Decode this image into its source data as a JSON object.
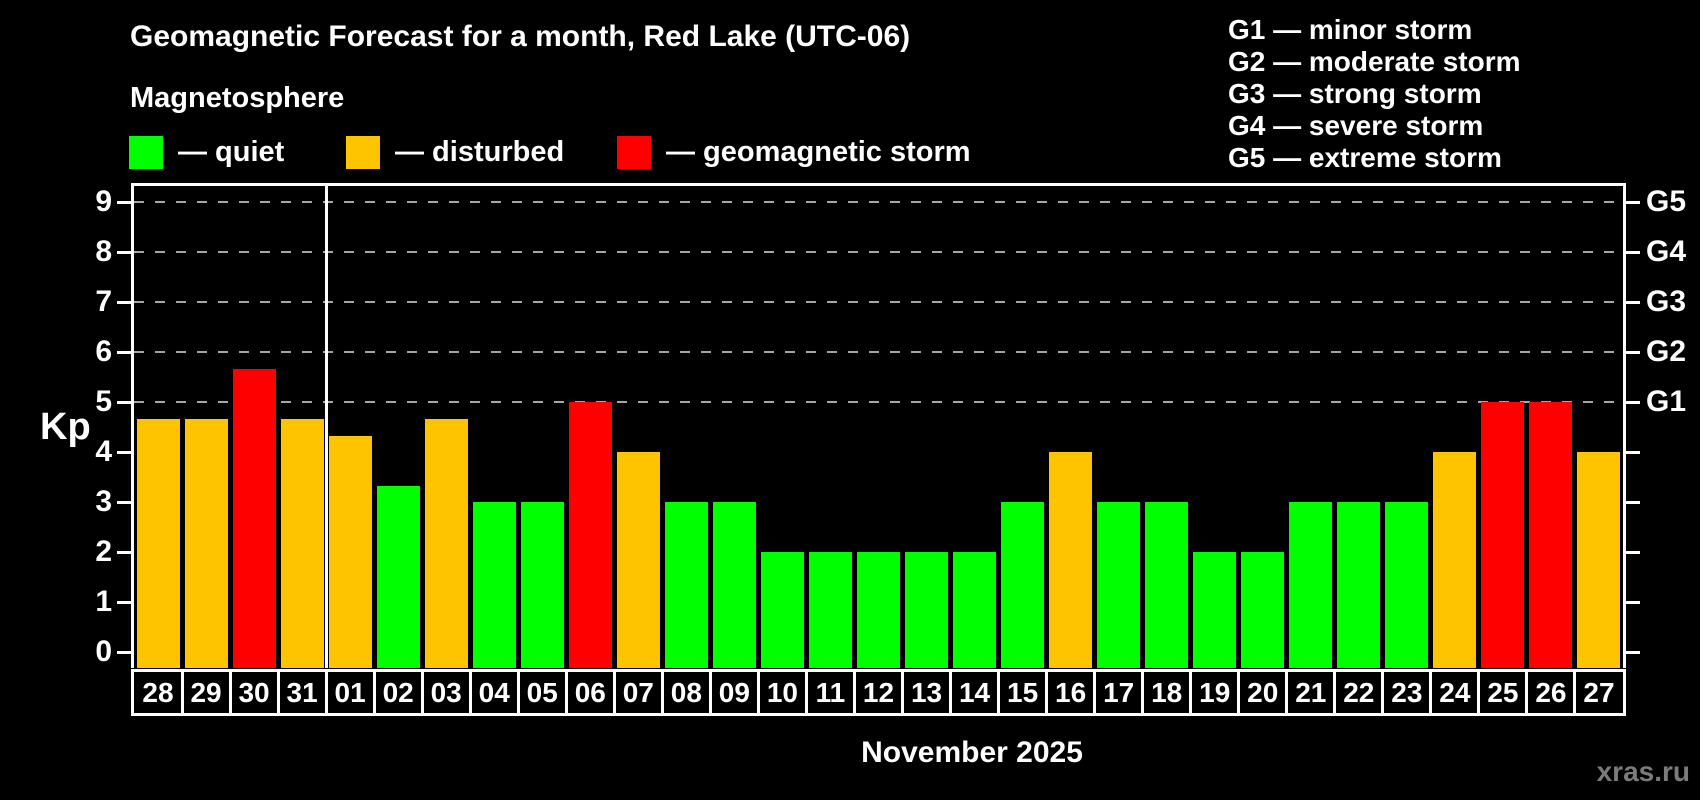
{
  "title": "Geomagnetic Forecast for a month, Red Lake (UTC-06)",
  "subtitle": "Magnetosphere",
  "legend": {
    "items": [
      {
        "label": "— quiet",
        "color": "#00ff00"
      },
      {
        "label": "— disturbed",
        "color": "#ffc400"
      },
      {
        "label": "— geomagnetic storm",
        "color": "#ff0000"
      }
    ]
  },
  "gscale_legend": [
    "G1 — minor storm",
    "G2 — moderate storm",
    "G3 — strong storm",
    "G4 — severe storm",
    "G5 — extreme storm"
  ],
  "axes": {
    "y_label": "Kp",
    "y_ticks": [
      "0",
      "1",
      "2",
      "3",
      "4",
      "5",
      "6",
      "7",
      "8",
      "9"
    ],
    "g_ticks": [
      {
        "kp": 5,
        "label": "G1"
      },
      {
        "kp": 6,
        "label": "G2"
      },
      {
        "kp": 7,
        "label": "G3"
      },
      {
        "kp": 8,
        "label": "G4"
      },
      {
        "kp": 9,
        "label": "G5"
      }
    ],
    "x_axis_title": "November 2025"
  },
  "watermark": "xras.ru",
  "chart_data": {
    "type": "bar",
    "title": "Geomagnetic Forecast for a month, Red Lake (UTC-06)",
    "ylabel": "Kp",
    "ylim": [
      0,
      9.4
    ],
    "grid": "dashed horizontal lines at Kp 5,6,7,8,9 (G1–G5)",
    "legend_position": "top-left",
    "categories": [
      "28",
      "29",
      "30",
      "31",
      "01",
      "02",
      "03",
      "04",
      "05",
      "06",
      "07",
      "08",
      "09",
      "10",
      "11",
      "12",
      "13",
      "14",
      "15",
      "16",
      "17",
      "18",
      "19",
      "20",
      "21",
      "22",
      "23",
      "24",
      "25",
      "26",
      "27"
    ],
    "values": [
      4.67,
      4.67,
      5.67,
      4.67,
      4.33,
      3.33,
      4.67,
      3,
      3,
      5,
      4,
      3,
      3,
      2,
      2,
      2,
      2,
      2,
      3,
      4,
      3,
      3,
      2,
      2,
      3,
      3,
      3,
      4,
      5,
      5,
      4
    ],
    "statuses": [
      "disturbed",
      "disturbed",
      "storm",
      "disturbed",
      "disturbed",
      "quiet",
      "disturbed",
      "quiet",
      "quiet",
      "storm",
      "disturbed",
      "quiet",
      "quiet",
      "quiet",
      "quiet",
      "quiet",
      "quiet",
      "quiet",
      "quiet",
      "disturbed",
      "quiet",
      "quiet",
      "quiet",
      "quiet",
      "quiet",
      "quiet",
      "quiet",
      "disturbed",
      "storm",
      "storm",
      "disturbed"
    ],
    "status_colors": {
      "quiet": "#00ff00",
      "disturbed": "#ffc400",
      "storm": "#ff0000"
    },
    "month_separator_after_index": 3,
    "month_label": "November 2025"
  }
}
